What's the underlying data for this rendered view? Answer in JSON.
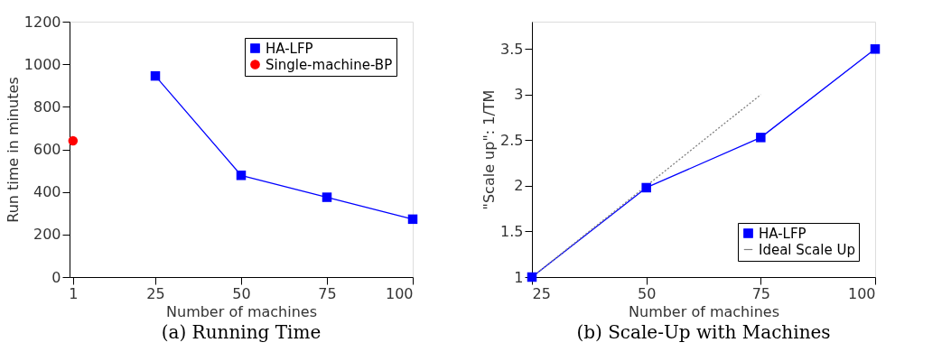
{
  "chart_data": [
    {
      "type": "line",
      "title": "(a) Running Time",
      "xlabel": "Number of machines",
      "ylabel": "Run time in minutes",
      "xlim": [
        0,
        100
      ],
      "xticks": [
        1,
        25,
        50,
        75,
        100
      ],
      "ylim": [
        0,
        1200
      ],
      "yticks": [
        0,
        200,
        400,
        600,
        800,
        1000,
        1200
      ],
      "grid": false,
      "legend": "top right",
      "series": [
        {
          "name": "HA-LFP",
          "color": "#0000ff",
          "x": [
            25,
            50,
            75,
            100
          ],
          "values": [
            945,
            478,
            375,
            272
          ],
          "marker": "square",
          "line_style": "solid"
        },
        {
          "name": "Single-machine-BP",
          "color": "#ff0000",
          "x": [
            1
          ],
          "values": [
            640
          ],
          "marker": "circle",
          "line_style": "dotted"
        }
      ]
    },
    {
      "type": "line",
      "title": "(b) Scale-Up with Machines",
      "xlabel": "Number of machines",
      "ylabel": "\"Scale up\": 1/TM",
      "xlim": [
        25,
        100
      ],
      "xticks": [
        25,
        50,
        75,
        100
      ],
      "ylim": [
        1,
        3.8
      ],
      "yticks": [
        1,
        1.5,
        2,
        2.5,
        3,
        3.5
      ],
      "grid": false,
      "legend": "bottom right",
      "series": [
        {
          "name": "HA-LFP",
          "color": "#0000ff",
          "x": [
            25,
            50,
            75,
            100
          ],
          "values": [
            1,
            1.98,
            2.53,
            3.5
          ],
          "marker": "square",
          "line_style": "solid"
        },
        {
          "name": "Ideal Scale Up",
          "color": "#808080",
          "x": [
            25,
            50,
            75
          ],
          "values": [
            1,
            2,
            3
          ],
          "marker": "none",
          "line_style": "dotted"
        }
      ]
    }
  ]
}
